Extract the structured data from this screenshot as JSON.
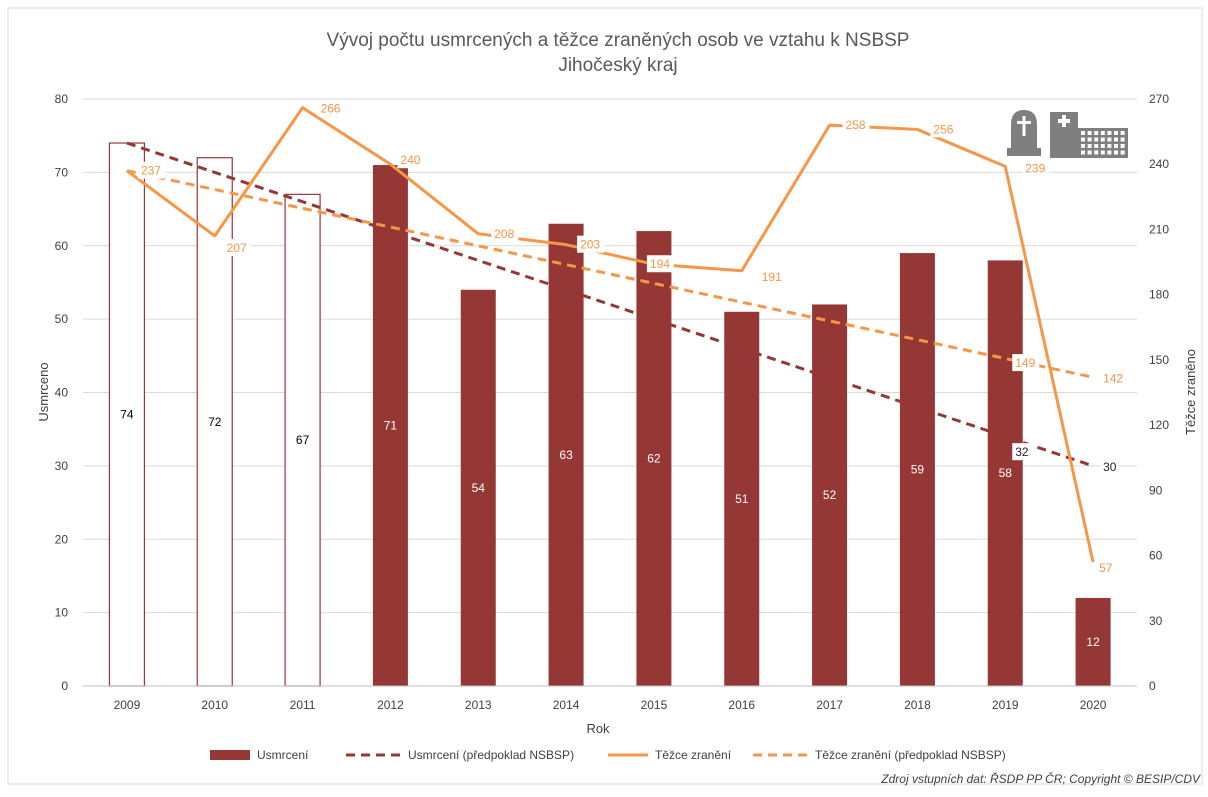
{
  "chart_data": {
    "type": "bar",
    "title": "Vývoj počtu usmrcených a těžce zraněných osob ve vztahu k NSBSP",
    "subtitle": "Jihočeský kraj",
    "xlabel": "Rok",
    "ylabel": "Usmrceno",
    "y2label": "Těžce zraněno",
    "categories": [
      "2009",
      "2010",
      "2011",
      "2012",
      "2013",
      "2014",
      "2015",
      "2016",
      "2017",
      "2018",
      "2019",
      "2020"
    ],
    "ylim": [
      0,
      80
    ],
    "yticks": [
      0,
      10,
      20,
      30,
      40,
      50,
      60,
      70,
      80
    ],
    "y2lim": [
      0,
      270
    ],
    "y2ticks": [
      0,
      30,
      60,
      90,
      120,
      150,
      180,
      210,
      240,
      270
    ],
    "grid": true,
    "legend_position": "bottom",
    "series": [
      {
        "name": "Usmrcení",
        "kind": "bar",
        "axis": "left",
        "values": [
          74,
          72,
          67,
          71,
          54,
          63,
          62,
          51,
          52,
          59,
          58,
          12
        ],
        "outlined": [
          true,
          true,
          true,
          false,
          false,
          false,
          false,
          false,
          false,
          false,
          false,
          false
        ],
        "labels": [
          "74",
          "72",
          "67",
          "71",
          "54",
          "63",
          "62",
          "51",
          "52",
          "59",
          "58",
          "12"
        ],
        "color": "#953735"
      },
      {
        "name": "Usmrcení (předpoklad NSBSP)",
        "kind": "dashed-line",
        "axis": "left",
        "x": [
          "2009",
          "2020"
        ],
        "values": [
          74,
          30
        ],
        "labelled_points": [
          {
            "x": "2019",
            "value": 32,
            "label": "32"
          },
          {
            "x": "2020",
            "value": 30,
            "label": "30"
          }
        ],
        "color": "#953735"
      },
      {
        "name": "Těžce zranění",
        "kind": "line",
        "axis": "right",
        "values": [
          237,
          207,
          266,
          240,
          208,
          203,
          194,
          191,
          258,
          256,
          239,
          57
        ],
        "labels": [
          "237",
          "207",
          "266",
          "240",
          "208",
          "203",
          "194",
          "191",
          "258",
          "256",
          "239",
          "57"
        ],
        "color": "#F79646"
      },
      {
        "name": "Těžce zranění (předpoklad NSBSP)",
        "kind": "dashed-line",
        "axis": "right",
        "x": [
          "2009",
          "2020"
        ],
        "values": [
          237,
          142
        ],
        "labelled_points": [
          {
            "x": "2019",
            "value": 149,
            "label": "149"
          },
          {
            "x": "2020",
            "value": 142,
            "label": "142"
          }
        ],
        "color": "#F79646"
      }
    ],
    "icons": [
      "tombstone-icon",
      "hospital-icon"
    ],
    "source": "Zdroj vstupních dat: ŘSDP PP ČR; Copyright © BESIP/CDV"
  }
}
